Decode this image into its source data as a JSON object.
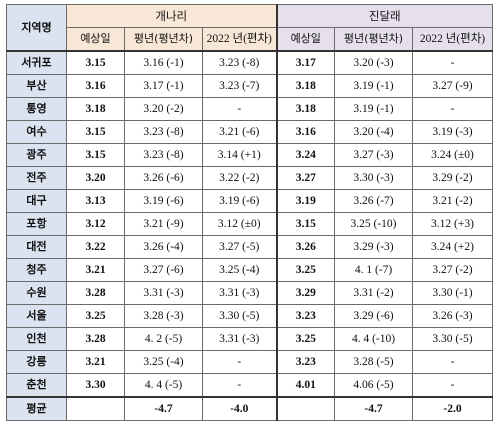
{
  "header": {
    "region_label": "지역명",
    "group1": "개나리",
    "group2": "진달래",
    "sub": [
      "예상일",
      "평년(평년차)",
      "2022 년(편차)"
    ]
  },
  "rows": [
    {
      "region": "서귀포",
      "g1": [
        "3.15",
        "3.16 (-1)",
        "3.23 (-8)"
      ],
      "g2": [
        "3.17",
        "3.20 (-3)",
        "-"
      ]
    },
    {
      "region": "부산",
      "g1": [
        "3.16",
        "3.17 (-1)",
        "3.23 (-7)"
      ],
      "g2": [
        "3.18",
        "3.19 (-1)",
        "3.27 (-9)"
      ]
    },
    {
      "region": "통영",
      "g1": [
        "3.18",
        "3.20 (-2)",
        "-"
      ],
      "g2": [
        "3.18",
        "3.19 (-1)",
        "-"
      ]
    },
    {
      "region": "여수",
      "g1": [
        "3.15",
        "3.23 (-8)",
        "3.21 (-6)"
      ],
      "g2": [
        "3.16",
        "3.20 (-4)",
        "3.19 (-3)"
      ]
    },
    {
      "region": "광주",
      "g1": [
        "3.15",
        "3.23 (-8)",
        "3.14 (+1)"
      ],
      "g2": [
        "3.24",
        "3.27 (-3)",
        "3.24 (±0)"
      ]
    },
    {
      "region": "전주",
      "g1": [
        "3.20",
        "3.26 (-6)",
        "3.22 (-2)"
      ],
      "g2": [
        "3.27",
        "3.30 (-3)",
        "3.29 (-2)"
      ]
    },
    {
      "region": "대구",
      "g1": [
        "3.13",
        "3.19 (-6)",
        "3.19 (-6)"
      ],
      "g2": [
        "3.19",
        "3.26 (-7)",
        "3.21 (-2)"
      ]
    },
    {
      "region": "포항",
      "g1": [
        "3.12",
        "3.21 (-9)",
        "3.12 (±0)"
      ],
      "g2": [
        "3.15",
        "3.25 (-10)",
        "3.12 (+3)"
      ]
    },
    {
      "region": "대전",
      "g1": [
        "3.22",
        "3.26 (-4)",
        "3.27 (-5)"
      ],
      "g2": [
        "3.26",
        "3.29 (-3)",
        "3.24 (+2)"
      ]
    },
    {
      "region": "청주",
      "g1": [
        "3.21",
        "3.27 (-6)",
        "3.25 (-4)"
      ],
      "g2": [
        "3.25",
        "4. 1 (-7)",
        "3.27 (-2)"
      ]
    },
    {
      "region": "수원",
      "g1": [
        "3.28",
        "3.31 (-3)",
        "3.31 (-3)"
      ],
      "g2": [
        "3.29",
        "3.31 (-2)",
        "3.30 (-1)"
      ]
    },
    {
      "region": "서울",
      "g1": [
        "3.25",
        "3.28 (-3)",
        "3.30 (-5)"
      ],
      "g2": [
        "3.23",
        "3.29 (-6)",
        "3.26 (-3)"
      ]
    },
    {
      "region": "인천",
      "g1": [
        "3.28",
        "4. 2 (-5)",
        "3.31 (-3)"
      ],
      "g2": [
        "3.25",
        "4. 4 (-10)",
        "3.30 (-5)"
      ]
    },
    {
      "region": "강릉",
      "g1": [
        "3.21",
        "3.25 (-4)",
        "-"
      ],
      "g2": [
        "3.23",
        "3.28 (-5)",
        "-"
      ]
    },
    {
      "region": "춘천",
      "g1": [
        "3.30",
        "4. 4 (-5)",
        "-"
      ],
      "g2": [
        "4.01",
        "4.06 (-5)",
        "-"
      ]
    }
  ],
  "average": {
    "label": "평균",
    "g1_normal": "-4.7",
    "g1_2022": "-4.0",
    "g2_normal": "-4.7",
    "g2_2022": "-2.0"
  }
}
